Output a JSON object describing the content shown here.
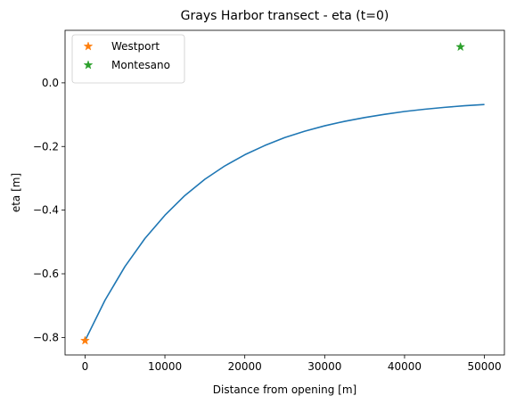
{
  "chart_data": {
    "type": "line",
    "title": "Grays Harbor transect - eta (t=0)",
    "xlabel": "Distance from opening [m]",
    "ylabel": "eta [m]",
    "xlim": [
      -2500,
      52500
    ],
    "ylim": [
      -0.855,
      0.165
    ],
    "xticks": [
      0,
      10000,
      20000,
      30000,
      40000,
      50000
    ],
    "xtick_labels": [
      "0",
      "10000",
      "20000",
      "30000",
      "40000",
      "50000"
    ],
    "yticks": [
      -0.8,
      -0.6,
      -0.4,
      -0.2,
      0.0
    ],
    "ytick_labels": [
      "−0.8",
      "−0.6",
      "−0.4",
      "−0.2",
      "0.0"
    ],
    "grid": false,
    "legend_position": "top-left",
    "series": [
      {
        "color": "#1f77b4",
        "style": "line",
        "x": [
          0,
          2500,
          5000,
          7500,
          10000,
          12500,
          15000,
          17500,
          20000,
          22500,
          25000,
          27500,
          30000,
          32500,
          35000,
          37500,
          40000,
          42500,
          45000,
          47500,
          50000
        ],
        "y": [
          -0.81,
          -0.683,
          -0.577,
          -0.489,
          -0.416,
          -0.354,
          -0.303,
          -0.261,
          -0.226,
          -0.197,
          -0.172,
          -0.152,
          -0.135,
          -0.121,
          -0.109,
          -0.099,
          -0.09,
          -0.083,
          -0.077,
          -0.072,
          -0.068
        ]
      },
      {
        "name": "Westport",
        "color": "#ff7f0e",
        "style": "star",
        "x": [
          0
        ],
        "y": [
          -0.81
        ]
      },
      {
        "name": "Montesano",
        "color": "#2ca02c",
        "style": "star",
        "x": [
          47000
        ],
        "y": [
          0.113
        ]
      }
    ]
  }
}
